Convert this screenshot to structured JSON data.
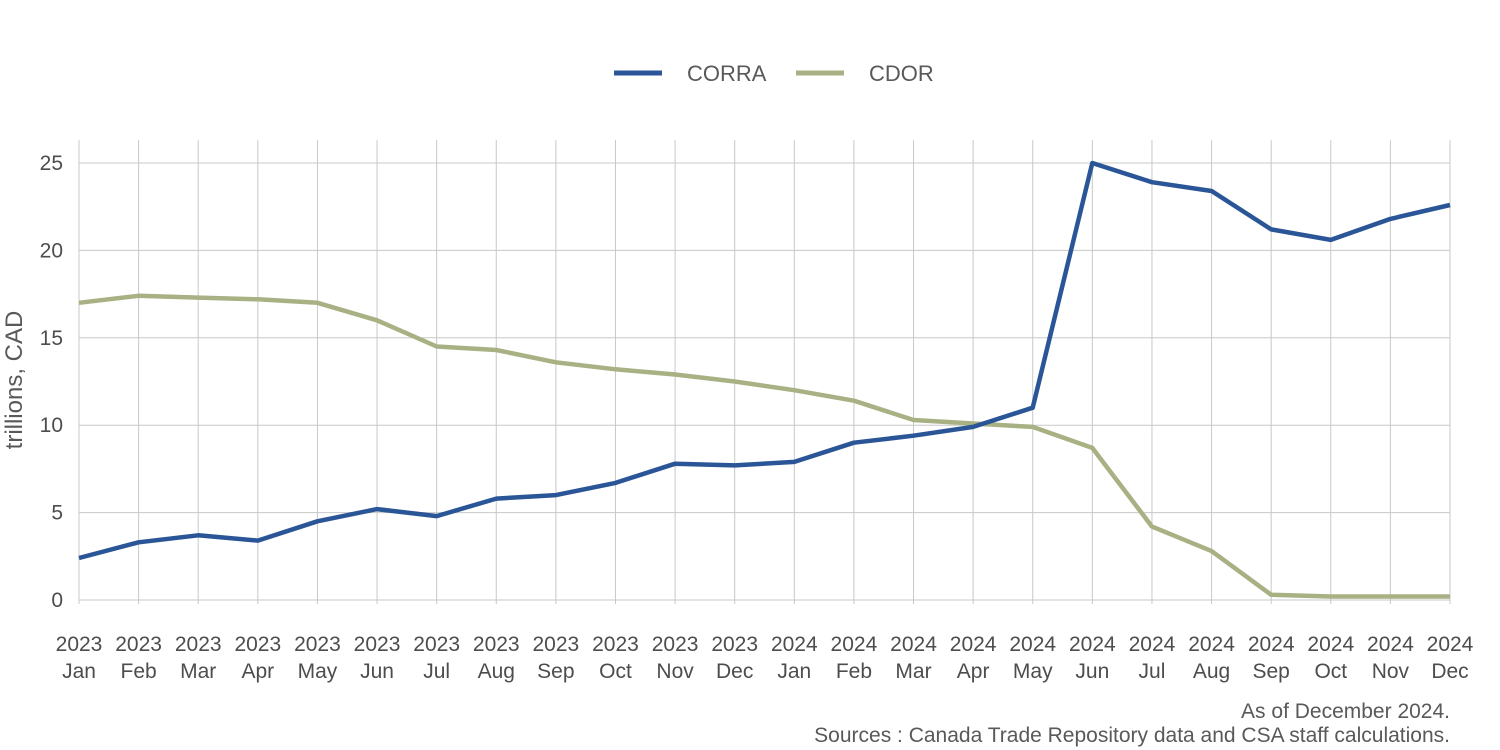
{
  "chart_data": {
    "type": "line",
    "title": "",
    "xlabel": "",
    "ylabel": "trillions, CAD",
    "ylim": [
      0,
      25
    ],
    "yticks": [
      0,
      5,
      10,
      15,
      20,
      25
    ],
    "grid": true,
    "legend_position": "top-center",
    "categories": [
      {
        "year": "2023",
        "month": "Jan"
      },
      {
        "year": "2023",
        "month": "Feb"
      },
      {
        "year": "2023",
        "month": "Mar"
      },
      {
        "year": "2023",
        "month": "Apr"
      },
      {
        "year": "2023",
        "month": "May"
      },
      {
        "year": "2023",
        "month": "Jun"
      },
      {
        "year": "2023",
        "month": "Jul"
      },
      {
        "year": "2023",
        "month": "Aug"
      },
      {
        "year": "2023",
        "month": "Sep"
      },
      {
        "year": "2023",
        "month": "Oct"
      },
      {
        "year": "2023",
        "month": "Nov"
      },
      {
        "year": "2023",
        "month": "Dec"
      },
      {
        "year": "2024",
        "month": "Jan"
      },
      {
        "year": "2024",
        "month": "Feb"
      },
      {
        "year": "2024",
        "month": "Mar"
      },
      {
        "year": "2024",
        "month": "Apr"
      },
      {
        "year": "2024",
        "month": "May"
      },
      {
        "year": "2024",
        "month": "Jun"
      },
      {
        "year": "2024",
        "month": "Jul"
      },
      {
        "year": "2024",
        "month": "Aug"
      },
      {
        "year": "2024",
        "month": "Sep"
      },
      {
        "year": "2024",
        "month": "Oct"
      },
      {
        "year": "2024",
        "month": "Nov"
      },
      {
        "year": "2024",
        "month": "Dec"
      }
    ],
    "series": [
      {
        "name": "CORRA",
        "color": "#2a5597",
        "values": [
          2.4,
          3.3,
          3.7,
          3.4,
          4.5,
          5.2,
          4.8,
          5.8,
          6.0,
          6.7,
          7.8,
          7.7,
          7.9,
          9.0,
          9.4,
          9.9,
          11.0,
          25.0,
          23.9,
          23.4,
          21.2,
          20.6,
          21.8,
          22.6
        ]
      },
      {
        "name": "CDOR",
        "color": "#a8b183",
        "values": [
          17.0,
          17.4,
          17.3,
          17.2,
          17.0,
          16.0,
          14.5,
          14.3,
          13.6,
          13.2,
          12.9,
          12.5,
          12.0,
          11.4,
          10.3,
          10.1,
          9.9,
          8.7,
          4.2,
          2.8,
          0.3,
          0.2,
          0.2,
          0.2
        ]
      }
    ],
    "footnotes": {
      "note": "As of December 2024.",
      "source": "Sources : Canada Trade Repository data and CSA staff calculations."
    }
  }
}
